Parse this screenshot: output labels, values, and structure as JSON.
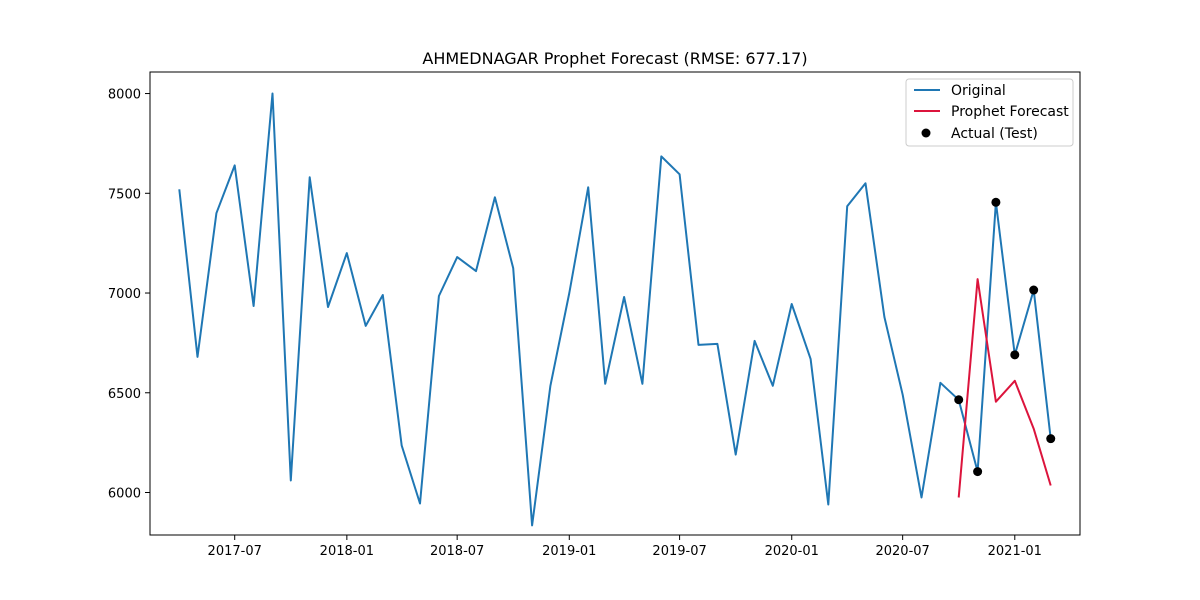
{
  "chart_data": {
    "type": "line",
    "title": "AHMEDNAGAR Prophet Forecast (RMSE: 677.17)",
    "xlabel": "",
    "ylabel": "",
    "x_ticks": [
      "2017-07",
      "2018-01",
      "2018-07",
      "2019-01",
      "2019-07",
      "2020-01",
      "2020-07",
      "2021-01"
    ],
    "y_ticks": [
      6000,
      6500,
      7000,
      7500,
      8000
    ],
    "xlim": [
      "2017-02-12",
      "2021-04-18"
    ],
    "ylim": [
      5787,
      8108
    ],
    "grid": false,
    "legend_position": "top-right",
    "series": [
      {
        "name": "Original",
        "style": "line",
        "color": "#1f77b4",
        "x": [
          "2017-04-01",
          "2017-05-01",
          "2017-06-01",
          "2017-07-01",
          "2017-08-01",
          "2017-09-01",
          "2017-10-01",
          "2017-11-01",
          "2017-12-01",
          "2018-01-01",
          "2018-02-01",
          "2018-03-01",
          "2018-04-01",
          "2018-05-01",
          "2018-06-01",
          "2018-07-01",
          "2018-08-01",
          "2018-09-01",
          "2018-10-01",
          "2018-11-01",
          "2018-12-01",
          "2019-01-01",
          "2019-02-01",
          "2019-03-01",
          "2019-04-01",
          "2019-05-01",
          "2019-06-01",
          "2019-07-01",
          "2019-08-01",
          "2019-09-01",
          "2019-10-01",
          "2019-11-01",
          "2019-12-01",
          "2020-01-01",
          "2020-02-01",
          "2020-03-01",
          "2020-04-01",
          "2020-05-01",
          "2020-06-01",
          "2020-07-01",
          "2020-08-01",
          "2020-09-01",
          "2020-10-01",
          "2020-11-01",
          "2020-12-01",
          "2021-01-01",
          "2021-02-01",
          "2021-03-01"
        ],
        "values": [
          7520,
          6680,
          7400,
          7640,
          6935,
          8000,
          6060,
          7580,
          6930,
          7200,
          6835,
          6990,
          6235,
          5945,
          6985,
          7180,
          7110,
          7480,
          7125,
          5835,
          6535,
          7000,
          7530,
          6545,
          6980,
          6545,
          7685,
          7595,
          6740,
          6745,
          6190,
          6760,
          6535,
          6945,
          6670,
          5940,
          7435,
          7550,
          6880,
          6490,
          5975,
          6550,
          6465,
          6105,
          7455,
          6690,
          7015,
          6270
        ]
      },
      {
        "name": "Prophet Forecast",
        "style": "line",
        "color": "#dc143c",
        "x": [
          "2020-10-01",
          "2020-11-01",
          "2020-12-01",
          "2021-01-01",
          "2021-02-01",
          "2021-03-01"
        ],
        "values": [
          5975,
          7070,
          6455,
          6560,
          6320,
          6035
        ]
      },
      {
        "name": "Actual (Test)",
        "style": "scatter",
        "color": "#000000",
        "x": [
          "2020-10-01",
          "2020-11-01",
          "2020-12-01",
          "2021-01-01",
          "2021-02-01",
          "2021-03-01"
        ],
        "values": [
          6465,
          6105,
          7455,
          6690,
          7015,
          6270
        ]
      }
    ]
  }
}
